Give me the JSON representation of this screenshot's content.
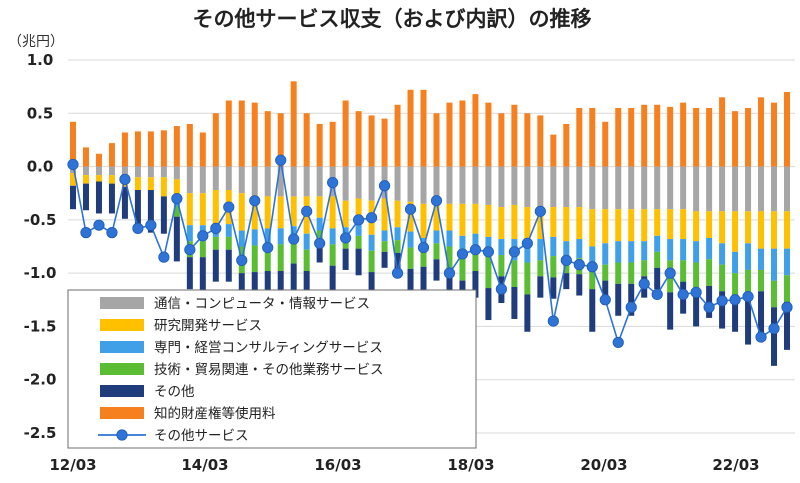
{
  "chart_data": {
    "type": "bar",
    "title": "その他サービス収支（および内訳）の推移",
    "ylabel": "（兆円）",
    "ylim": [
      -2.5,
      1.0
    ],
    "yticks": [
      "1.0",
      "0.5",
      "0.0",
      "-0.5",
      "-1.0",
      "-1.5",
      "-2.0",
      "-2.5"
    ],
    "xticks": [
      "12/03",
      "14/03",
      "16/03",
      "18/03",
      "20/03",
      "22/03"
    ],
    "grid": true,
    "legend_position": "bottom-left",
    "colors": {
      "communications": "#a6a6a6",
      "research": "#ffc000",
      "professional": "#3fa0e8",
      "technical": "#5bbd34",
      "other": "#1f3c7d",
      "ip": "#f7801e",
      "total": "#2e73d6"
    },
    "legend": [
      {
        "key": "communications",
        "label": "通信・コンピュータ・情報サービス"
      },
      {
        "key": "research",
        "label": "研究開発サービス"
      },
      {
        "key": "professional",
        "label": "専門・経営コンサルティングサービス"
      },
      {
        "key": "technical",
        "label": "技術・貿易関連・その他業務サービス"
      },
      {
        "key": "other",
        "label": "その他"
      },
      {
        "key": "ip",
        "label": "知的財産権等使用料"
      },
      {
        "key": "total",
        "label": "その他サービス"
      }
    ],
    "series": {
      "communications": [
        -0.06,
        -0.08,
        -0.08,
        -0.08,
        -0.09,
        -0.1,
        -0.1,
        -0.1,
        -0.12,
        -0.25,
        -0.25,
        -0.22,
        -0.22,
        -0.25,
        -0.27,
        -0.28,
        -0.28,
        -0.28,
        -0.28,
        -0.28,
        -0.28,
        -0.32,
        -0.3,
        -0.32,
        -0.3,
        -0.32,
        -0.33,
        -0.35,
        -0.35,
        -0.35,
        -0.35,
        -0.35,
        -0.36,
        -0.38,
        -0.36,
        -0.38,
        -0.38,
        -0.38,
        -0.38,
        -0.38,
        -0.4,
        -0.4,
        -0.4,
        -0.4,
        -0.4,
        -0.4,
        -0.4,
        -0.4,
        -0.42,
        -0.42,
        -0.42,
        -0.42,
        -0.42,
        -0.42,
        -0.42,
        -0.42
      ],
      "research": [
        -0.12,
        -0.08,
        -0.06,
        -0.08,
        -0.1,
        -0.12,
        -0.12,
        -0.18,
        -0.15,
        -0.3,
        -0.3,
        -0.32,
        -0.32,
        -0.35,
        -0.32,
        -0.3,
        -0.3,
        -0.28,
        -0.35,
        -0.2,
        -0.3,
        -0.25,
        -0.25,
        -0.32,
        -0.3,
        -0.25,
        -0.28,
        -0.32,
        -0.25,
        -0.25,
        -0.3,
        -0.28,
        -0.3,
        -0.3,
        -0.32,
        -0.32,
        -0.3,
        -0.28,
        -0.32,
        -0.3,
        -0.35,
        -0.32,
        -0.3,
        -0.3,
        -0.3,
        -0.25,
        -0.28,
        -0.28,
        -0.28,
        -0.25,
        -0.3,
        -0.38,
        -0.3,
        -0.35,
        -0.35,
        -0.35
      ],
      "professional": [
        0,
        0,
        0,
        0,
        0,
        0,
        0,
        0,
        -0.1,
        -0.15,
        -0.15,
        -0.12,
        -0.12,
        -0.15,
        -0.15,
        -0.15,
        -0.15,
        -0.15,
        -0.15,
        -0.12,
        -0.15,
        -0.1,
        -0.1,
        -0.15,
        -0.1,
        -0.12,
        -0.15,
        -0.12,
        -0.12,
        -0.15,
        -0.12,
        -0.15,
        -0.18,
        -0.15,
        -0.2,
        -0.2,
        -0.2,
        -0.18,
        -0.2,
        -0.18,
        -0.2,
        -0.2,
        -0.2,
        -0.2,
        -0.18,
        -0.15,
        -0.2,
        -0.2,
        -0.2,
        -0.2,
        -0.2,
        -0.2,
        -0.25,
        -0.2,
        -0.3,
        -0.25
      ],
      "technical": [
        0,
        0,
        0,
        0,
        0,
        0,
        0,
        0,
        -0.1,
        -0.15,
        -0.15,
        -0.12,
        -0.12,
        -0.25,
        -0.25,
        -0.25,
        -0.25,
        -0.2,
        -0.2,
        -0.1,
        -0.2,
        -0.1,
        -0.12,
        -0.2,
        -0.1,
        -0.12,
        -0.2,
        -0.15,
        -0.15,
        -0.2,
        -0.3,
        -0.2,
        -0.3,
        -0.2,
        -0.25,
        -0.3,
        -0.15,
        -0.2,
        -0.1,
        -0.15,
        -0.2,
        -0.15,
        -0.2,
        -0.2,
        -0.15,
        -0.15,
        -0.3,
        -0.2,
        -0.25,
        -0.25,
        -0.25,
        -0.2,
        -0.25,
        -0.2,
        -0.25,
        -0.25
      ],
      "other": [
        -0.22,
        -0.25,
        -0.3,
        -0.28,
        -0.3,
        -0.35,
        -0.4,
        -0.35,
        -0.42,
        -0.3,
        -0.35,
        -0.3,
        -0.3,
        -0.35,
        -0.4,
        -0.35,
        -0.35,
        -0.3,
        -0.3,
        -0.2,
        -0.3,
        -0.2,
        -0.25,
        -0.25,
        -0.15,
        -0.2,
        -0.25,
        -0.25,
        -0.2,
        -0.25,
        -0.4,
        -0.25,
        -0.3,
        -0.25,
        -0.3,
        -0.35,
        -0.2,
        -0.2,
        -0.15,
        -0.2,
        -0.4,
        -0.2,
        -0.3,
        -0.3,
        -0.2,
        -0.2,
        -0.35,
        -0.3,
        -0.35,
        -0.3,
        -0.35,
        -0.35,
        -0.45,
        -0.45,
        -0.55,
        -0.45
      ],
      "ip": [
        0.42,
        0.18,
        0.12,
        0.22,
        0.32,
        0.33,
        0.33,
        0.34,
        0.38,
        0.4,
        0.32,
        0.5,
        0.62,
        0.62,
        0.6,
        0.52,
        0.5,
        0.8,
        0.5,
        0.4,
        0.42,
        0.62,
        0.52,
        0.48,
        0.45,
        0.58,
        0.72,
        0.72,
        0.5,
        0.6,
        0.62,
        0.68,
        0.6,
        0.5,
        0.58,
        0.5,
        0.48,
        0.3,
        0.4,
        0.55,
        0.55,
        0.42,
        0.55,
        0.55,
        0.58,
        0.58,
        0.56,
        0.6,
        0.55,
        0.55,
        0.65,
        0.52,
        0.55,
        0.65,
        0.6,
        0.7
      ],
      "total": [
        0.02,
        -0.62,
        -0.55,
        -0.62,
        -0.12,
        -0.58,
        -0.55,
        -0.85,
        -0.3,
        -0.78,
        -0.65,
        -0.58,
        -0.38,
        -0.88,
        -0.32,
        -0.76,
        0.06,
        -0.68,
        -0.42,
        -0.72,
        -0.15,
        -0.67,
        -0.5,
        -0.48,
        -0.18,
        -1.0,
        -0.4,
        -0.76,
        -0.32,
        -1.0,
        -0.82,
        -0.78,
        -0.8,
        -1.15,
        -0.8,
        -0.72,
        -0.42,
        -1.45,
        -0.88,
        -0.92,
        -0.94,
        -1.25,
        -1.65,
        -1.32,
        -1.1,
        -1.2,
        -1.0,
        -1.2,
        -1.18,
        -1.32,
        -1.26,
        -1.25,
        -1.22,
        -1.6,
        -1.52,
        -1.32
      ]
    }
  }
}
